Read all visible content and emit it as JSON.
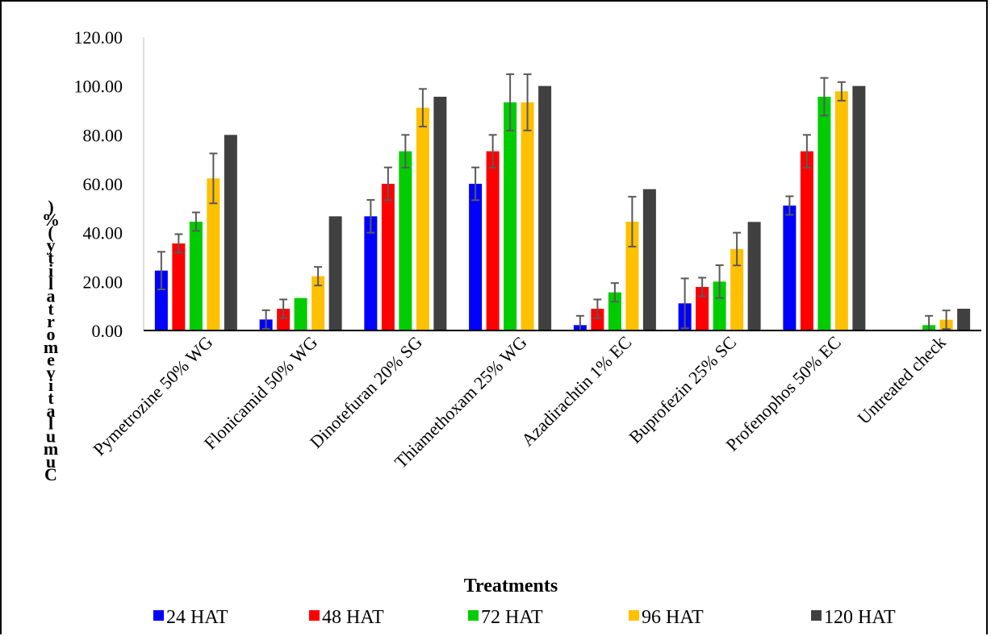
{
  "chart_data": {
    "type": "bar",
    "title": "",
    "xlabel": "Treatments",
    "ylabel": "Cumulative mortality (%)",
    "ylim": [
      0,
      120
    ],
    "yticks": [
      "0.00",
      "20.00",
      "40.00",
      "60.00",
      "80.00",
      "100.00",
      "120.00"
    ],
    "legend_position": "bottom",
    "grid": false,
    "categories": [
      "Pymetrozine 50% WG",
      "Flonicamid 50% WG",
      "Dinotefuran 20% SG",
      "Thiamethoxam 25% WG",
      "Azadirachtin 1% EC",
      "Buprofezin 25% SC",
      "Profenophos 50% EC",
      "Untreated check"
    ],
    "series": [
      {
        "name": "24 HAT",
        "color": "#0000ff",
        "values": [
          24.5,
          4.5,
          46.7,
          60.0,
          2.2,
          11.1,
          51.1,
          0.0
        ],
        "errors": [
          7.7,
          3.8,
          6.7,
          6.7,
          3.8,
          10.2,
          3.8,
          0.0
        ]
      },
      {
        "name": "48 HAT",
        "color": "#ff0000",
        "values": [
          35.6,
          8.9,
          60.0,
          73.3,
          8.9,
          17.8,
          73.3,
          0.0
        ],
        "errors": [
          3.8,
          3.8,
          6.7,
          6.7,
          3.8,
          3.8,
          6.7,
          0.0
        ]
      },
      {
        "name": "72 HAT",
        "color": "#00cc00",
        "values": [
          44.5,
          13.3,
          73.3,
          93.3,
          15.6,
          20.0,
          95.6,
          2.2
        ],
        "errors": [
          3.8,
          0.0,
          6.7,
          11.5,
          3.8,
          6.7,
          7.7,
          3.8
        ]
      },
      {
        "name": "96 HAT",
        "color": "#ffc000",
        "values": [
          62.2,
          22.2,
          91.1,
          93.3,
          44.5,
          33.3,
          97.8,
          4.4
        ],
        "errors": [
          10.2,
          3.8,
          7.7,
          11.5,
          10.2,
          6.7,
          3.8,
          3.8
        ]
      },
      {
        "name": "120 HAT",
        "color": "#404040",
        "values": [
          80.0,
          46.7,
          95.6,
          100.0,
          57.8,
          44.4,
          100.0,
          8.9
        ],
        "errors": [
          0,
          0,
          0,
          0,
          0,
          0,
          0,
          0
        ]
      }
    ]
  }
}
